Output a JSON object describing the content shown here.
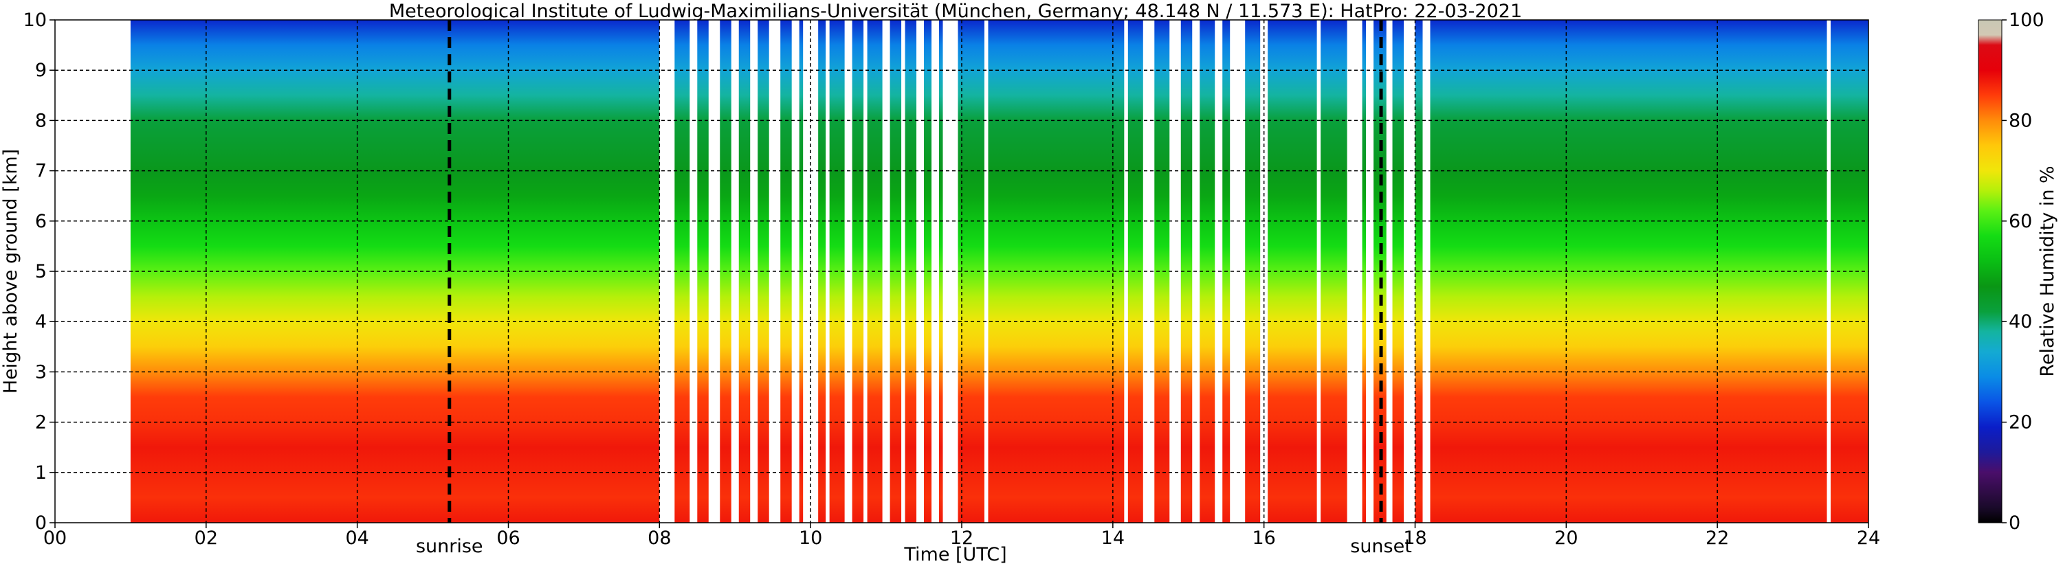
{
  "chart_data": {
    "type": "heatmap",
    "title": "Meteorological Institute of Ludwig-Maximilians-Universität (München, Germany; 48.148 N / 11.573 E):    HatPro: 22-03-2021",
    "xlabel": "Time [UTC]",
    "ylabel": "Height above ground [km]",
    "xlim": [
      0,
      24
    ],
    "ylim": [
      0,
      10
    ],
    "x_ticks": [
      "00",
      "02",
      "04",
      "06",
      "08",
      "10",
      "12",
      "14",
      "16",
      "18",
      "20",
      "22",
      "24"
    ],
    "y_ticks": [
      "0",
      "1",
      "2",
      "3",
      "4",
      "5",
      "6",
      "7",
      "8",
      "9",
      "10"
    ],
    "grid": true,
    "colorbar": {
      "label": "Relative Humidity in %",
      "range": [
        0,
        100
      ],
      "ticks": [
        "0",
        "20",
        "40",
        "60",
        "80",
        "100"
      ]
    },
    "data_start_hour": 1.0,
    "data_end_hour": 24.0,
    "annotations": [
      {
        "label": "sunrise",
        "time": 5.22
      },
      {
        "label": "sunset",
        "time": 17.55
      }
    ],
    "missing_data_gaps": [
      [
        8.0,
        8.2
      ],
      [
        8.4,
        8.5
      ],
      [
        8.65,
        8.8
      ],
      [
        8.95,
        9.05
      ],
      [
        9.2,
        9.3
      ],
      [
        9.45,
        9.6
      ],
      [
        9.75,
        9.85
      ],
      [
        9.9,
        10.1
      ],
      [
        10.2,
        10.25
      ],
      [
        10.45,
        10.55
      ],
      [
        10.7,
        10.75
      ],
      [
        10.95,
        11.05
      ],
      [
        11.2,
        11.25
      ],
      [
        11.4,
        11.5
      ],
      [
        11.6,
        11.7
      ],
      [
        11.75,
        11.95
      ],
      [
        12.3,
        12.35
      ],
      [
        14.15,
        14.2
      ],
      [
        14.4,
        14.55
      ],
      [
        14.75,
        14.9
      ],
      [
        15.05,
        15.15
      ],
      [
        15.35,
        15.45
      ],
      [
        15.55,
        15.75
      ],
      [
        15.95,
        16.05
      ],
      [
        16.7,
        16.75
      ],
      [
        17.1,
        17.3
      ],
      [
        17.35,
        17.45
      ],
      [
        17.62,
        17.7
      ],
      [
        17.85,
        18.0
      ],
      [
        18.1,
        18.2
      ],
      [
        23.45,
        23.5
      ]
    ],
    "humidity_profile": [
      {
        "height_km": 0.0,
        "rh": 88
      },
      {
        "height_km": 0.25,
        "rh": 87
      },
      {
        "height_km": 0.5,
        "rh": 86
      },
      {
        "height_km": 1.0,
        "rh": 87
      },
      {
        "height_km": 1.5,
        "rh": 88
      },
      {
        "height_km": 2.0,
        "rh": 86
      },
      {
        "height_km": 2.5,
        "rh": 85
      },
      {
        "height_km": 3.0,
        "rh": 80
      },
      {
        "height_km": 3.5,
        "rh": 74
      },
      {
        "height_km": 4.0,
        "rh": 70
      },
      {
        "height_km": 4.5,
        "rh": 66
      },
      {
        "height_km": 5.0,
        "rh": 62
      },
      {
        "height_km": 5.5,
        "rh": 57
      },
      {
        "height_km": 6.0,
        "rh": 53
      },
      {
        "height_km": 6.5,
        "rh": 49
      },
      {
        "height_km": 7.0,
        "rh": 46
      },
      {
        "height_km": 7.5,
        "rh": 44
      },
      {
        "height_km": 8.0,
        "rh": 42
      },
      {
        "height_km": 8.5,
        "rh": 38
      },
      {
        "height_km": 9.0,
        "rh": 33
      },
      {
        "height_km": 9.5,
        "rh": 28
      },
      {
        "height_km": 10.0,
        "rh": 20
      }
    ],
    "colormap": [
      {
        "v": 0,
        "color": "#000000"
      },
      {
        "v": 3,
        "color": "#1a0a2a"
      },
      {
        "v": 10,
        "color": "#4a0e6a"
      },
      {
        "v": 14,
        "color": "#1e1a9a"
      },
      {
        "v": 19,
        "color": "#0a1ec8"
      },
      {
        "v": 24,
        "color": "#0a55e6"
      },
      {
        "v": 29,
        "color": "#0a8ce6"
      },
      {
        "v": 34,
        "color": "#14aad2"
      },
      {
        "v": 38,
        "color": "#14b4a0"
      },
      {
        "v": 42,
        "color": "#0aa03c"
      },
      {
        "v": 47,
        "color": "#0a9614"
      },
      {
        "v": 52,
        "color": "#0abe14"
      },
      {
        "v": 57,
        "color": "#14dc14"
      },
      {
        "v": 62,
        "color": "#5af014"
      },
      {
        "v": 66,
        "color": "#b4f00a"
      },
      {
        "v": 70,
        "color": "#f0e60a"
      },
      {
        "v": 75,
        "color": "#ffc80a"
      },
      {
        "v": 80,
        "color": "#ff8c0a"
      },
      {
        "v": 85,
        "color": "#ff3c0a"
      },
      {
        "v": 90,
        "color": "#e6000a"
      },
      {
        "v": 95,
        "color": "#dc0a14"
      },
      {
        "v": 97,
        "color": "#d2c8b4"
      },
      {
        "v": 100,
        "color": "#c8c8b4"
      }
    ]
  }
}
